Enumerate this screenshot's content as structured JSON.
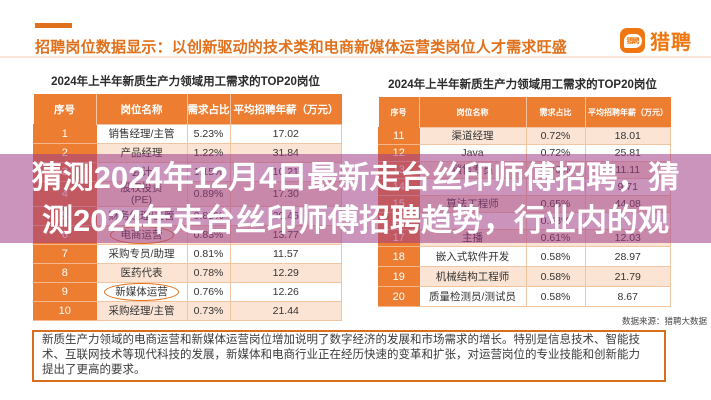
{
  "header": {
    "title": "招聘岗位数据显示：以创新驱动的技术类和电商新媒体运营类岗位人才需求旺盛"
  },
  "logo": {
    "brand": "猎聘",
    "icon_text": "猎聘",
    "brand_color": "#F0760F"
  },
  "tables": [
    {
      "title": "2024年上半年新质生产力领域用工需求的TOP20岗位",
      "columns": [
        "序号",
        "岗位名称",
        "需求占比",
        "平均招聘年薪（万元）"
      ],
      "rows": [
        {
          "no": "1",
          "name": "销售经理/主管",
          "pct": "5.23%",
          "salary": "17.02"
        },
        {
          "no": "2",
          "name": "产品经理",
          "pct": "1.22%",
          "salary": "31.84"
        },
        {
          "no": "3",
          "name": "会计",
          "pct": "1.15%",
          "salary": "10.21"
        },
        {
          "no": "4",
          "name": "股权投资(PE)",
          "pct": "0.89%",
          "salary": "17.30",
          "two_line": true
        },
        {
          "no": "5",
          "name": "财务经理/主管",
          "pct": "0.85%",
          "salary": "20.45"
        },
        {
          "no": "6",
          "name": "电商运营",
          "pct": "0.83%",
          "salary": "13.77",
          "circled": true
        },
        {
          "no": "7",
          "name": "采购专员/助理",
          "pct": "0.81%",
          "salary": "11.57"
        },
        {
          "no": "8",
          "name": "医药代表",
          "pct": "0.78%",
          "salary": "12.29"
        },
        {
          "no": "9",
          "name": "新媒体运营",
          "pct": "0.76%",
          "salary": "12.26",
          "circled": true
        },
        {
          "no": "10",
          "name": "采购经理/主管",
          "pct": "0.73%",
          "salary": "21.44"
        }
      ]
    },
    {
      "title": "2024年上半年新质生产力领域用工需求的TOP20岗位",
      "columns": [
        "序号",
        "岗位名称",
        "需求占比",
        "平均招聘年薪（万元）"
      ],
      "rows": [
        {
          "no": "11",
          "name": "渠道经理",
          "pct": "0.72%",
          "salary": "18.01"
        },
        {
          "no": "12",
          "name": "Java",
          "pct": "0.72%",
          "salary": "25.81"
        },
        {
          "no": "13",
          "name": "销售专员",
          "pct": "0.70%",
          "salary": "11.11"
        },
        {
          "no": "14",
          "name": "",
          "pct": "",
          "salary": "9.71"
        },
        {
          "no": "15",
          "name": "算法工程师",
          "pct": "0.65%",
          "salary": "44.08"
        },
        {
          "no": "16",
          "name": "",
          "pct": "0.63%",
          "salary": ""
        },
        {
          "no": "17",
          "name": "主播",
          "pct": "0.61%",
          "salary": "12.03"
        },
        {
          "no": "18",
          "name": "嵌入式软件开发",
          "pct": "0.58%",
          "salary": "28.97"
        },
        {
          "no": "19",
          "name": "机械结构工程师",
          "pct": "0.58%",
          "salary": "21.79"
        },
        {
          "no": "20",
          "name": "质量检测员/测试员",
          "pct": "0.58%",
          "salary": "8.67"
        }
      ]
    }
  ],
  "source_caption": "数据来源：猎聘大数据",
  "overlay": {
    "line1": "猜测2024年12月4日最新走台丝印师傅招聘，猜",
    "line2": "测2024年走台丝印师傅招聘趋势，行业内的观",
    "band_color": "rgba(158,60,134,0.55)"
  },
  "summary": {
    "lines": [
      "新质生产力领域的电商运营和新媒体运营岗位增加说明了数字经济的发展和市场需求的增长。特别是信息技术、智能技",
      "术、互联网技术等现代科技的发展，新媒体和电商行业正在经历快速的变革和扩张，对运营岗位的专业技能和创新能力",
      "提出了更高的要求。"
    ]
  },
  "colors": {
    "accent_orange": "#E0701B",
    "table_header": "#ED7D31",
    "row_alt": "#FBE4D4"
  }
}
